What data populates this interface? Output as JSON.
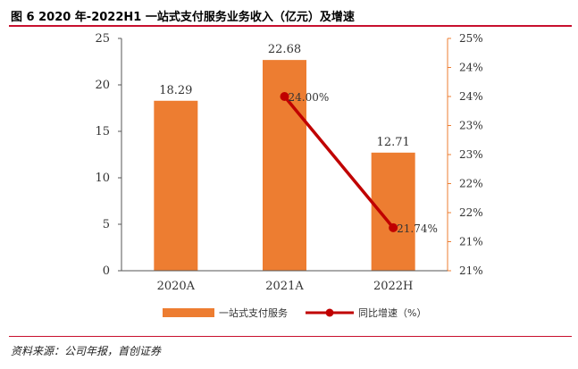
{
  "chart_data": {
    "type": "bar",
    "title": "图 6  2020 年-2022H1 一站式支付服务业务收入（亿元）及增速",
    "categories": [
      "2020A",
      "2021A",
      "2022H"
    ],
    "series": [
      {
        "name": "一站式支付服务",
        "type": "bar",
        "axis": "left",
        "color": "#ed7d31",
        "values": [
          18.29,
          22.68,
          12.71
        ],
        "labels": [
          "18.29",
          "22.68",
          "12.71"
        ]
      },
      {
        "name": "同比增速（%）",
        "type": "line",
        "axis": "right",
        "color": "#c00000",
        "values": [
          null,
          24.0,
          21.74
        ],
        "labels": [
          "",
          "24.00%",
          "21.74%"
        ]
      }
    ],
    "left_axis": {
      "min": 0,
      "max": 25,
      "ticks": [
        "0",
        "5",
        "10",
        "15",
        "20",
        "25"
      ]
    },
    "right_axis": {
      "min": 21,
      "max": 25,
      "ticks": [
        "21%",
        "21%",
        "22%",
        "22%",
        "23%",
        "23%",
        "24%",
        "24%",
        "25%"
      ]
    },
    "legend_position": "bottom"
  },
  "source": "资料来源：公司年报，首创证券"
}
